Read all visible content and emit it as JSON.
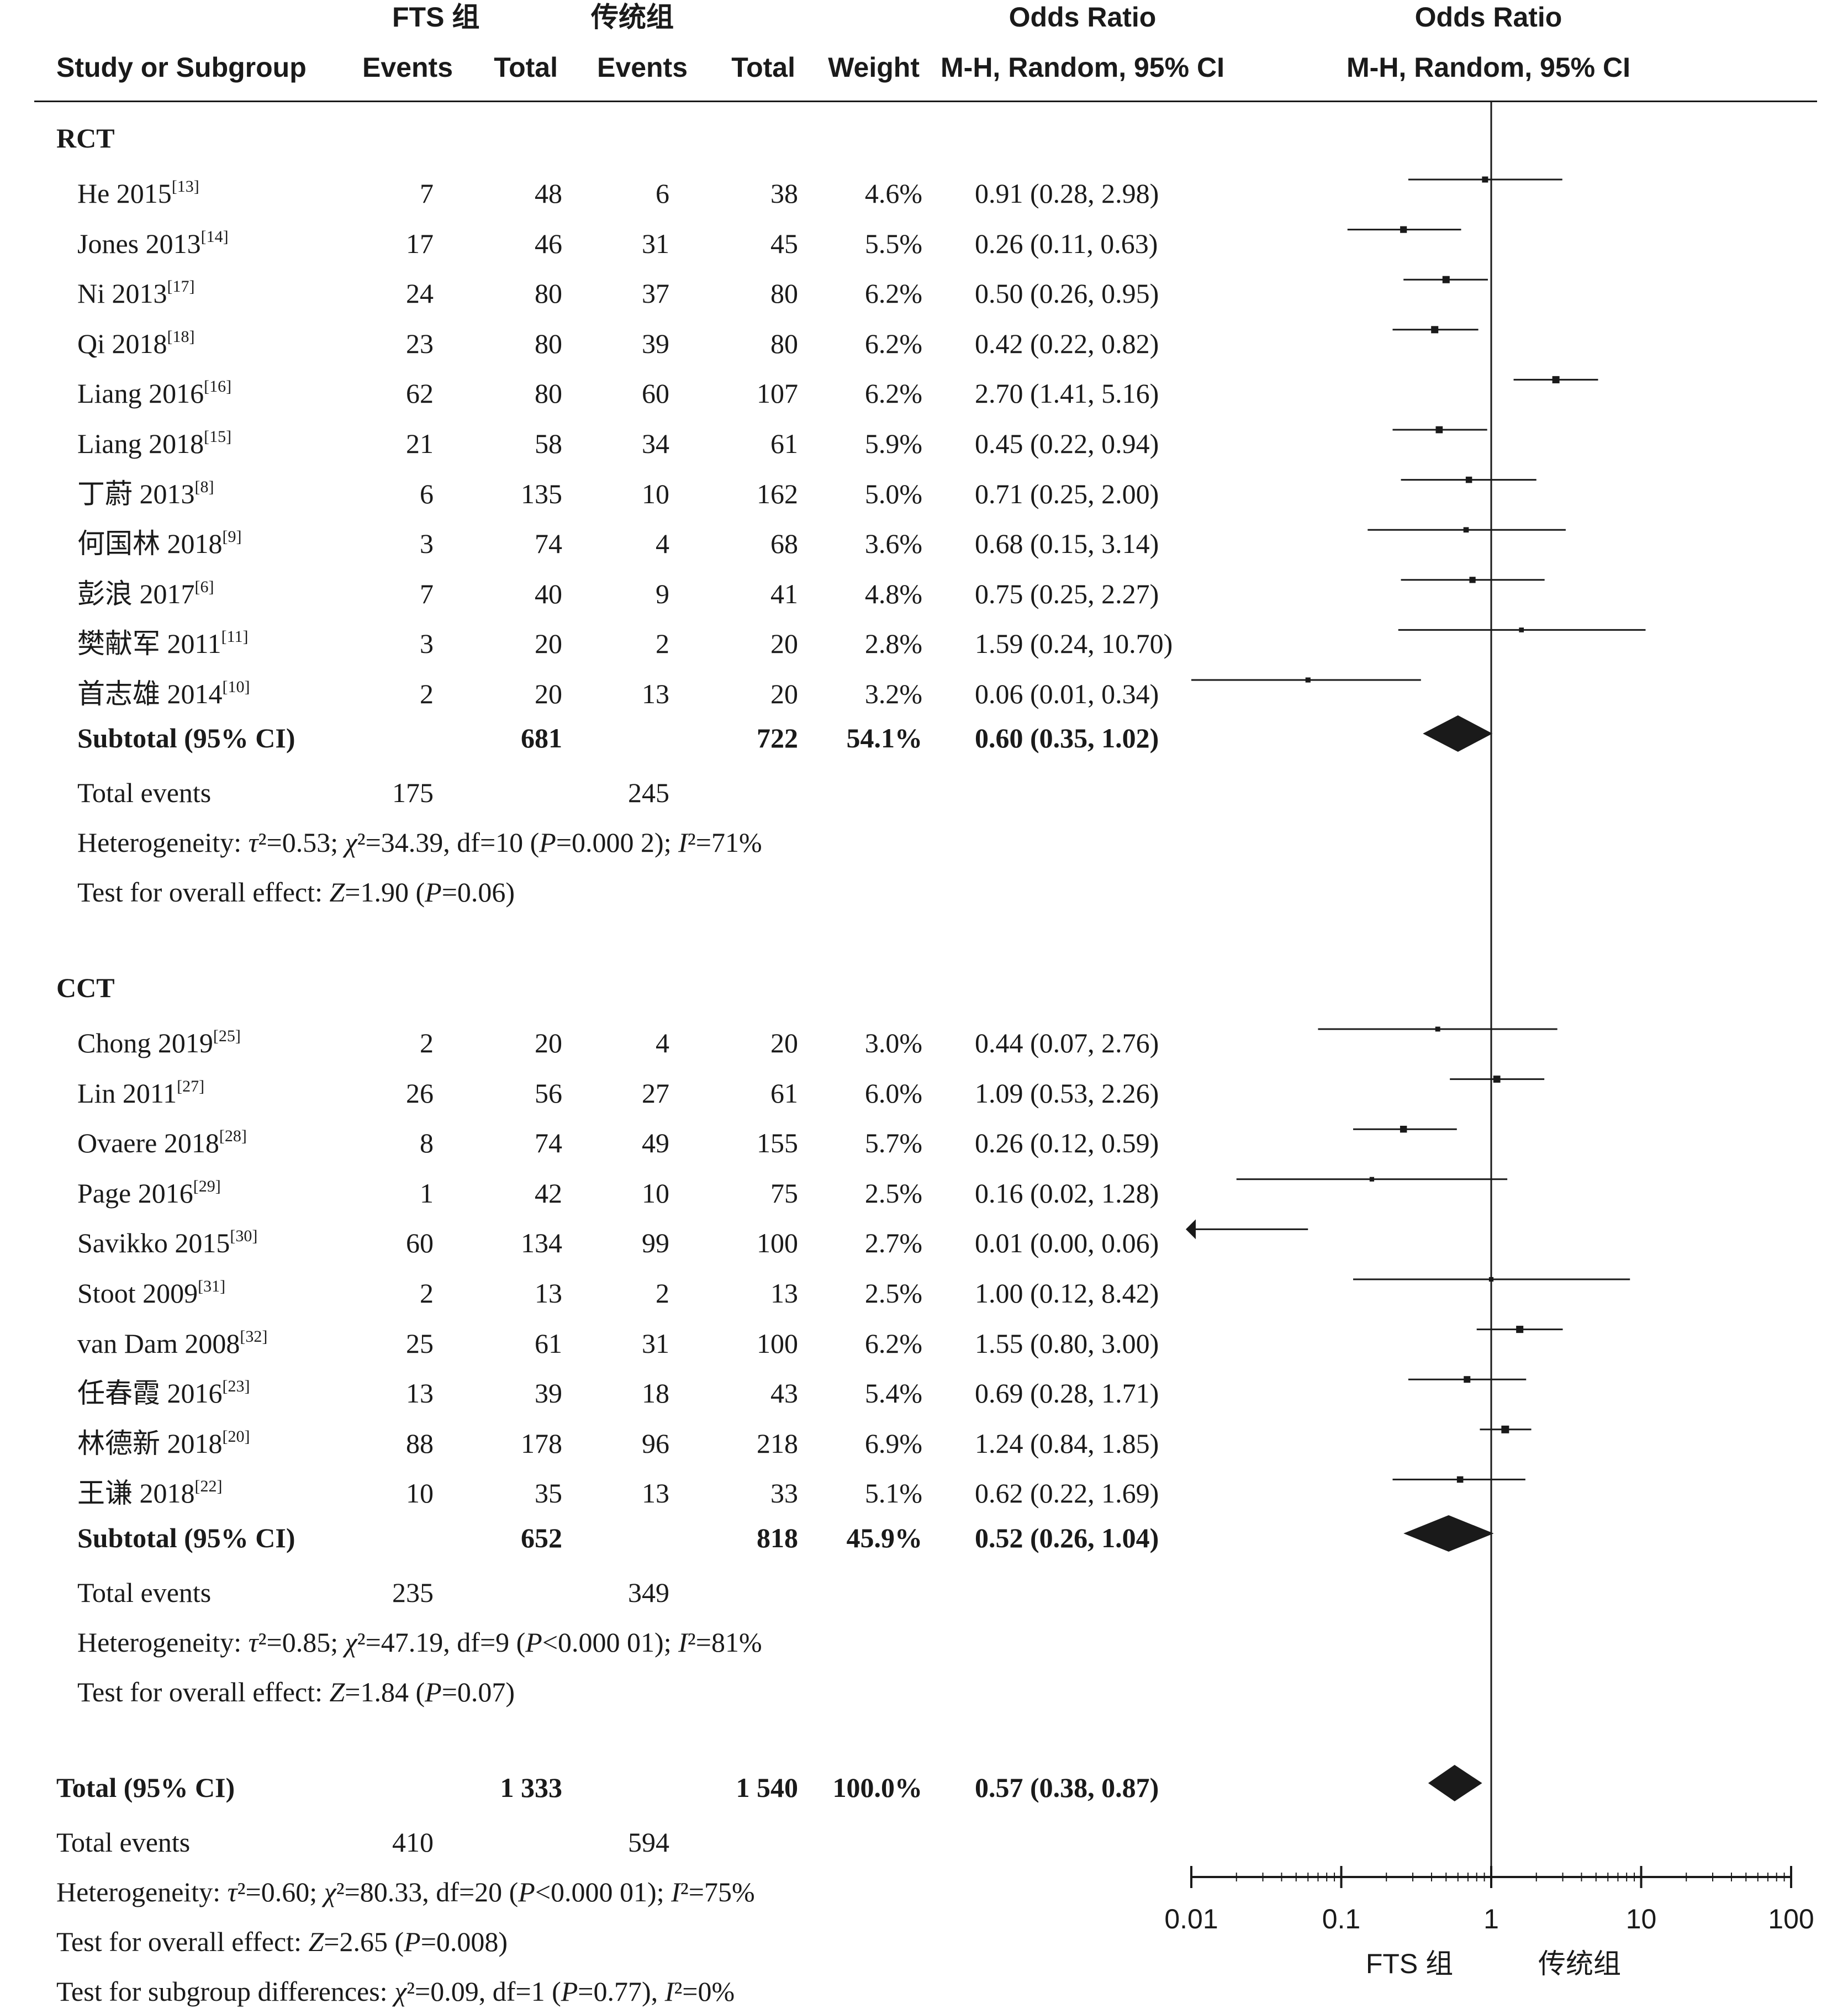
{
  "header": {
    "group1_name": "FTS 组",
    "group2_name": "传统组",
    "study_label": "Study or Subgroup",
    "events_label": "Events",
    "total_label": "Total",
    "weight_label": "Weight",
    "or_label": "Odds Ratio",
    "or_method_label": "M-H, Random, 95% CI"
  },
  "subgroups": [
    {
      "name": "RCT",
      "studies": [
        {
          "name": "He 2015",
          "ref": "[13]",
          "e1": "7",
          "t1": "48",
          "e2": "6",
          "t2": "38",
          "weight": "4.6%",
          "ci": "0.91 (0.28, 2.98)"
        },
        {
          "name": "Jones 2013",
          "ref": "[14]",
          "e1": "17",
          "t1": "46",
          "e2": "31",
          "t2": "45",
          "weight": "5.5%",
          "ci": "0.26 (0.11, 0.63)"
        },
        {
          "name": "Ni 2013",
          "ref": "[17]",
          "e1": "24",
          "t1": "80",
          "e2": "37",
          "t2": "80",
          "weight": "6.2%",
          "ci": "0.50 (0.26, 0.95)"
        },
        {
          "name": "Qi 2018",
          "ref": "[18]",
          "e1": "23",
          "t1": "80",
          "e2": "39",
          "t2": "80",
          "weight": "6.2%",
          "ci": "0.42 (0.22, 0.82)"
        },
        {
          "name": "Liang 2016",
          "ref": "[16]",
          "e1": "62",
          "t1": "80",
          "e2": "60",
          "t2": "107",
          "weight": "6.2%",
          "ci": "2.70 (1.41, 5.16)"
        },
        {
          "name": "Liang 2018",
          "ref": "[15]",
          "e1": "21",
          "t1": "58",
          "e2": "34",
          "t2": "61",
          "weight": "5.9%",
          "ci": "0.45 (0.22, 0.94)"
        },
        {
          "name": "丁蔚 2013",
          "ref": "[8]",
          "e1": "6",
          "t1": "135",
          "e2": "10",
          "t2": "162",
          "weight": "5.0%",
          "ci": "0.71 (0.25, 2.00)"
        },
        {
          "name": "何国林 2018",
          "ref": "[9]",
          "e1": "3",
          "t1": "74",
          "e2": "4",
          "t2": "68",
          "weight": "3.6%",
          "ci": "0.68 (0.15, 3.14)"
        },
        {
          "name": "彭浪 2017",
          "ref": "[6]",
          "e1": "7",
          "t1": "40",
          "e2": "9",
          "t2": "41",
          "weight": "4.8%",
          "ci": "0.75 (0.25, 2.27)"
        },
        {
          "name": "樊献军 2011",
          "ref": "[11]",
          "e1": "3",
          "t1": "20",
          "e2": "2",
          "t2": "20",
          "weight": "2.8%",
          "ci": "1.59 (0.24, 10.70)"
        },
        {
          "name": "首志雄 2014",
          "ref": "[10]",
          "e1": "2",
          "t1": "20",
          "e2": "13",
          "t2": "20",
          "weight": "3.2%",
          "ci": "0.06 (0.01, 0.34)"
        }
      ],
      "subtotal": {
        "label": "Subtotal (95% CI)",
        "t1": "681",
        "t2": "722",
        "weight": "54.1%",
        "ci": "0.60 (0.35, 1.02)"
      },
      "total_events": {
        "label": "Total events",
        "e1": "175",
        "e2": "245"
      },
      "heterogeneity": {
        "label": "Heterogeneity: ",
        "tau_sym": "τ",
        "tau": "²=0.53; ",
        "chi_sym": "χ",
        "chi": "²=34.39, df=10 (",
        "p_sym": "P",
        "p": "=0.000 2); ",
        "i_sym": "I",
        "i2": "²=71%"
      },
      "overall": {
        "label": "Test for overall effect: ",
        "z_sym": "Z",
        "z": "=1.90 (",
        "p_sym": "P",
        "p": "=0.06)"
      }
    },
    {
      "name": "CCT",
      "studies": [
        {
          "name": "Chong 2019",
          "ref": "[25]",
          "e1": "2",
          "t1": "20",
          "e2": "4",
          "t2": "20",
          "weight": "3.0%",
          "ci": "0.44 (0.07, 2.76)"
        },
        {
          "name": "Lin 2011",
          "ref": "[27]",
          "e1": "26",
          "t1": "56",
          "e2": "27",
          "t2": "61",
          "weight": "6.0%",
          "ci": "1.09 (0.53, 2.26)"
        },
        {
          "name": "Ovaere 2018",
          "ref": "[28]",
          "e1": "8",
          "t1": "74",
          "e2": "49",
          "t2": "155",
          "weight": "5.7%",
          "ci": "0.26 (0.12, 0.59)"
        },
        {
          "name": "Page 2016",
          "ref": "[29]",
          "e1": "1",
          "t1": "42",
          "e2": "10",
          "t2": "75",
          "weight": "2.5%",
          "ci": "0.16 (0.02, 1.28)"
        },
        {
          "name": "Savikko 2015",
          "ref": "[30]",
          "e1": "60",
          "t1": "134",
          "e2": "99",
          "t2": "100",
          "weight": "2.7%",
          "ci": "0.01 (0.00, 0.06)"
        },
        {
          "name": "Stoot 2009",
          "ref": "[31]",
          "e1": "2",
          "t1": "13",
          "e2": "2",
          "t2": "13",
          "weight": "2.5%",
          "ci": "1.00 (0.12, 8.42)"
        },
        {
          "name": "van Dam 2008",
          "ref": "[32]",
          "e1": "25",
          "t1": "61",
          "e2": "31",
          "t2": "100",
          "weight": "6.2%",
          "ci": "1.55 (0.80, 3.00)"
        },
        {
          "name": "任春霞 2016",
          "ref": "[23]",
          "e1": "13",
          "t1": "39",
          "e2": "18",
          "t2": "43",
          "weight": "5.4%",
          "ci": "0.69 (0.28, 1.71)"
        },
        {
          "name": "林德新 2018",
          "ref": "[20]",
          "e1": "88",
          "t1": "178",
          "e2": "96",
          "t2": "218",
          "weight": "6.9%",
          "ci": "1.24 (0.84, 1.85)"
        },
        {
          "name": "王谦 2018",
          "ref": "[22]",
          "e1": "10",
          "t1": "35",
          "e2": "13",
          "t2": "33",
          "weight": "5.1%",
          "ci": "0.62 (0.22, 1.69)"
        }
      ],
      "subtotal": {
        "label": "Subtotal (95% CI)",
        "t1": "652",
        "t2": "818",
        "weight": "45.9%",
        "ci": "0.52 (0.26, 1.04)"
      },
      "total_events": {
        "label": "Total events",
        "e1": "235",
        "e2": "349"
      },
      "heterogeneity": {
        "label": "Heterogeneity: ",
        "tau_sym": "τ",
        "tau": "²=0.85; ",
        "chi_sym": "χ",
        "chi": "²=47.19, df=9 (",
        "p_sym": "P",
        "p": "<0.000 01); ",
        "i_sym": "I",
        "i2": "²=81%"
      },
      "overall": {
        "label": "Test for overall effect: ",
        "z_sym": "Z",
        "z": "=1.84 (",
        "p_sym": "P",
        "p": "=0.07)"
      }
    }
  ],
  "total": {
    "label": "Total (95% CI)",
    "t1": "1 333",
    "t2": "1 540",
    "weight": "100.0%",
    "ci": "0.57 (0.38, 0.87)",
    "events_label": "Total events",
    "e1": "410",
    "e2": "594",
    "heterogeneity": {
      "label": "Heterogeneity: ",
      "tau_sym": "τ",
      "tau": "²=0.60; ",
      "chi_sym": "χ",
      "chi": "²=80.33, df=20 (",
      "p_sym": "P",
      "p": "<0.000 01); ",
      "i_sym": "I",
      "i2": "²=75%"
    },
    "overall": {
      "label": "Test for overall effect: ",
      "z_sym": "Z",
      "z": "=2.65 (",
      "p_sym": "P",
      "p": "=0.008)"
    },
    "subgroup_diff": {
      "label": "Test for subgroup differences: ",
      "chi_sym": "χ",
      "chi": "²=0.09, df=1 (",
      "p_sym": "P",
      "p": "=0.77), ",
      "i_sym": "I",
      "i2": "²=0%"
    }
  },
  "chart_data": {
    "type": "forest",
    "scale": "log",
    "xlim": [
      0.01,
      100
    ],
    "xticks": [
      0.01,
      0.1,
      1,
      10,
      100
    ],
    "xtick_labels": [
      "0.01",
      "0.1",
      "1",
      "10",
      "100"
    ],
    "favours_left": "FTS 组",
    "favours_right": "传统组",
    "rct_points": [
      {
        "or": 0.91,
        "lo": 0.28,
        "hi": 2.98,
        "w": 4.6
      },
      {
        "or": 0.26,
        "lo": 0.11,
        "hi": 0.63,
        "w": 5.5
      },
      {
        "or": 0.5,
        "lo": 0.26,
        "hi": 0.95,
        "w": 6.2
      },
      {
        "or": 0.42,
        "lo": 0.22,
        "hi": 0.82,
        "w": 6.2
      },
      {
        "or": 2.7,
        "lo": 1.41,
        "hi": 5.16,
        "w": 6.2
      },
      {
        "or": 0.45,
        "lo": 0.22,
        "hi": 0.94,
        "w": 5.9
      },
      {
        "or": 0.71,
        "lo": 0.25,
        "hi": 2.0,
        "w": 5.0
      },
      {
        "or": 0.68,
        "lo": 0.15,
        "hi": 3.14,
        "w": 3.6
      },
      {
        "or": 0.75,
        "lo": 0.25,
        "hi": 2.27,
        "w": 4.8
      },
      {
        "or": 1.59,
        "lo": 0.24,
        "hi": 10.7,
        "w": 2.8
      },
      {
        "or": 0.06,
        "lo": 0.01,
        "hi": 0.34,
        "w": 3.2
      }
    ],
    "rct_subtotal": {
      "or": 0.6,
      "lo": 0.35,
      "hi": 1.02
    },
    "cct_points": [
      {
        "or": 0.44,
        "lo": 0.07,
        "hi": 2.76,
        "w": 3.0
      },
      {
        "or": 1.09,
        "lo": 0.53,
        "hi": 2.26,
        "w": 6.0
      },
      {
        "or": 0.26,
        "lo": 0.12,
        "hi": 0.59,
        "w": 5.7
      },
      {
        "or": 0.16,
        "lo": 0.02,
        "hi": 1.28,
        "w": 2.5
      },
      {
        "or": 0.01,
        "lo": 0.0,
        "hi": 0.06,
        "w": 2.7
      },
      {
        "or": 1.0,
        "lo": 0.12,
        "hi": 8.42,
        "w": 2.5
      },
      {
        "or": 1.55,
        "lo": 0.8,
        "hi": 3.0,
        "w": 6.2
      },
      {
        "or": 0.69,
        "lo": 0.28,
        "hi": 1.71,
        "w": 5.4
      },
      {
        "or": 1.24,
        "lo": 0.84,
        "hi": 1.85,
        "w": 6.9
      },
      {
        "or": 0.62,
        "lo": 0.22,
        "hi": 1.69,
        "w": 5.1
      }
    ],
    "cct_subtotal": {
      "or": 0.52,
      "lo": 0.26,
      "hi": 1.04
    },
    "overall": {
      "or": 0.57,
      "lo": 0.38,
      "hi": 0.87
    }
  }
}
